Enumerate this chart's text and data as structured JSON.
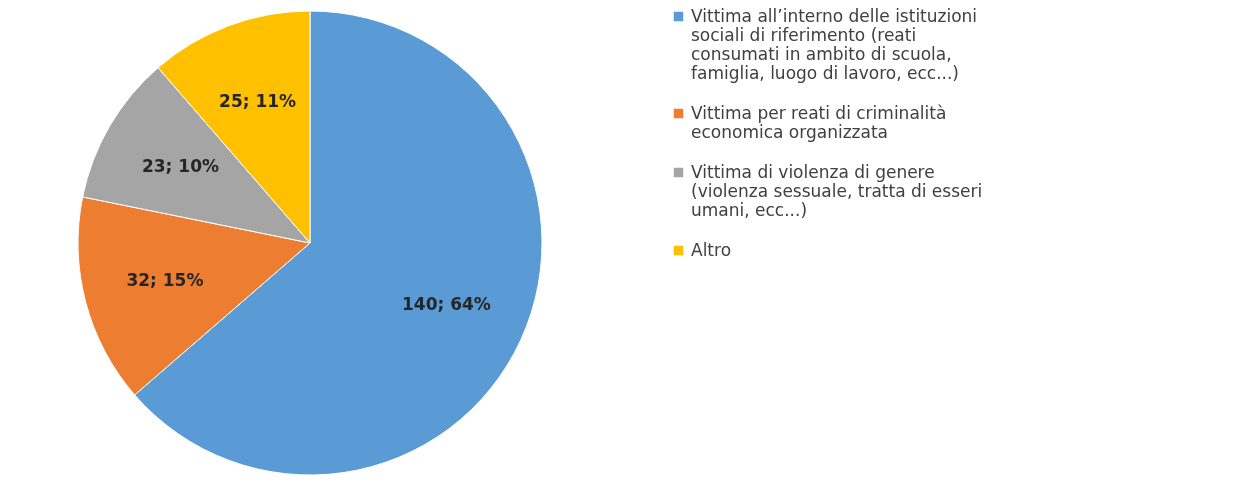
{
  "chart_data": {
    "type": "pie",
    "categories": [
      "Vittima all’interno delle istituzioni sociali di riferimento (reati consumati in ambito di scuola, famiglia, luogo di lavoro, ecc...)",
      "Vittima per reati di criminalità economica organizzata",
      "Vittima di violenza di genere (violenza sessuale, tratta di esseri umani, ecc...)",
      "Altro"
    ],
    "values": [
      140,
      32,
      23,
      25
    ],
    "colors": [
      "#5b9bd5",
      "#ed7d31",
      "#a5a5a5",
      "#ffc000"
    ],
    "value_labels": [
      "140; 64%",
      "32; 15%",
      "23; 10%",
      "25; 11%"
    ],
    "legend": "right"
  }
}
